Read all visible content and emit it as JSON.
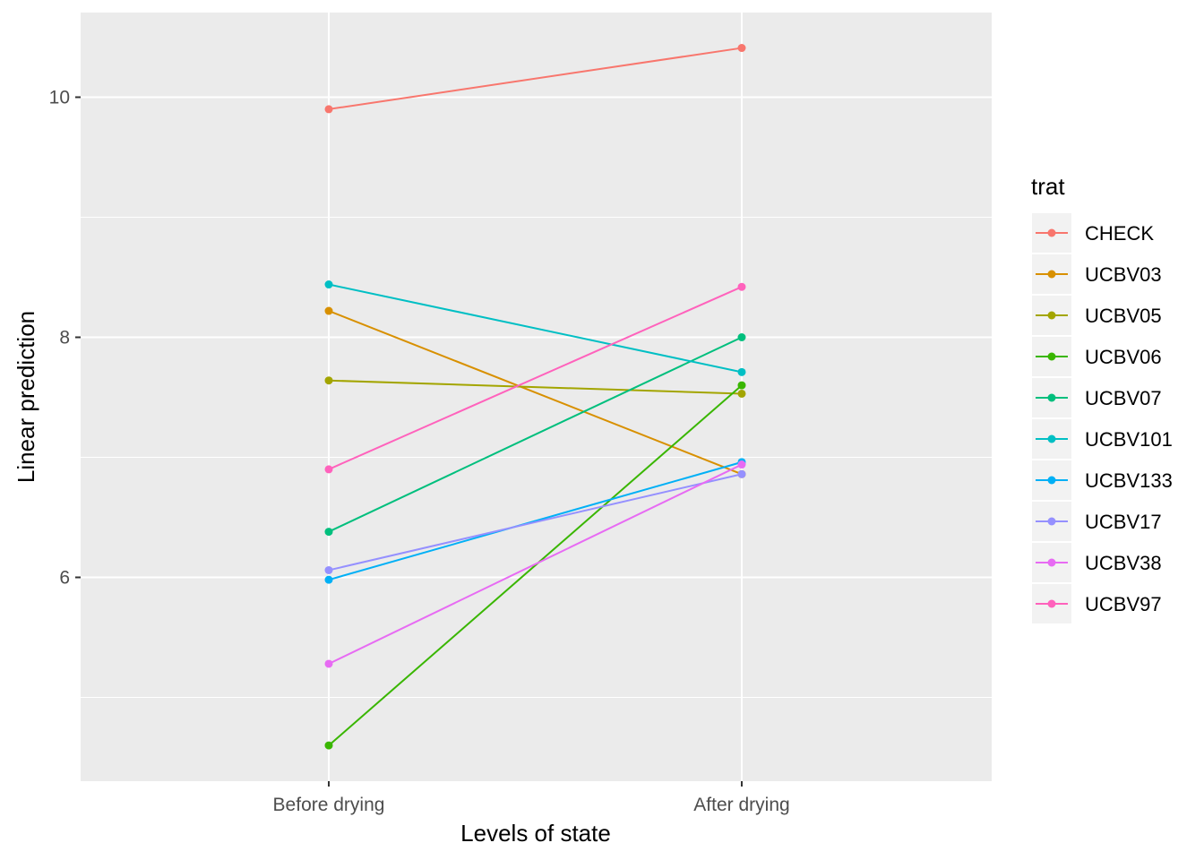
{
  "chart_data": {
    "type": "line",
    "xlabel": "Levels of state",
    "ylabel": "Linear prediction",
    "categories": [
      "Before drying",
      "After drying"
    ],
    "ylim": [
      4.6,
      10.7
    ],
    "yticks": [
      6,
      8,
      10
    ],
    "y_minor_gridlines": [
      5,
      7,
      9
    ],
    "grid": true,
    "legend": {
      "title": "trat",
      "position": "right"
    },
    "series": [
      {
        "name": "CHECK",
        "color": "#F8766D",
        "values": [
          9.9,
          10.41
        ]
      },
      {
        "name": "UCBV03",
        "color": "#D89000",
        "values": [
          8.22,
          6.86
        ]
      },
      {
        "name": "UCBV05",
        "color": "#A3A500",
        "values": [
          7.64,
          7.53
        ]
      },
      {
        "name": "UCBV06",
        "color": "#39B600",
        "values": [
          4.6,
          7.6
        ]
      },
      {
        "name": "UCBV07",
        "color": "#00BF7D",
        "values": [
          6.38,
          8.0
        ]
      },
      {
        "name": "UCBV101",
        "color": "#00BFC4",
        "values": [
          8.44,
          7.71
        ]
      },
      {
        "name": "UCBV133",
        "color": "#00B0F6",
        "values": [
          5.98,
          6.96
        ]
      },
      {
        "name": "UCBV17",
        "color": "#9590FF",
        "values": [
          6.06,
          6.86
        ]
      },
      {
        "name": "UCBV38",
        "color": "#E76BF3",
        "values": [
          5.28,
          6.94
        ]
      },
      {
        "name": "UCBV97",
        "color": "#FF62BC",
        "values": [
          6.9,
          8.42
        ]
      }
    ]
  }
}
